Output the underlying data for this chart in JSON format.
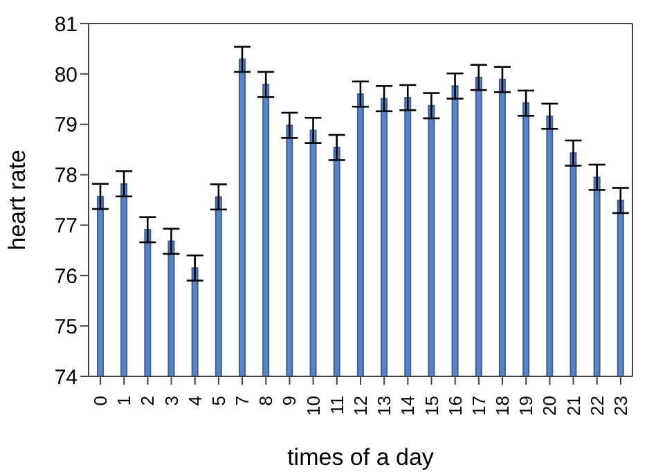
{
  "chart_data": {
    "type": "bar",
    "xlabel": "times of a day",
    "ylabel": "heart rate",
    "categories": [
      "0",
      "1",
      "2",
      "3",
      "4",
      "5",
      "7",
      "8",
      "9",
      "10",
      "11",
      "12",
      "13",
      "14",
      "15",
      "16",
      "17",
      "18",
      "19",
      "20",
      "21",
      "22",
      "23"
    ],
    "values": [
      77.57,
      77.82,
      76.91,
      76.68,
      76.15,
      77.56,
      80.29,
      79.79,
      78.98,
      78.88,
      78.54,
      79.6,
      79.51,
      79.53,
      79.37,
      79.76,
      79.93,
      79.89,
      79.42,
      79.16,
      78.43,
      77.95,
      77.49
    ],
    "errors": [
      0.25,
      0.25,
      0.25,
      0.25,
      0.25,
      0.25,
      0.25,
      0.25,
      0.25,
      0.25,
      0.25,
      0.25,
      0.25,
      0.25,
      0.25,
      0.25,
      0.25,
      0.25,
      0.25,
      0.25,
      0.25,
      0.25,
      0.25
    ],
    "color": "#5b84c8",
    "ylim": [
      74,
      81
    ],
    "yticks": [
      74,
      75,
      76,
      77,
      78,
      79,
      80,
      81
    ],
    "grid": false,
    "legend": false
  }
}
